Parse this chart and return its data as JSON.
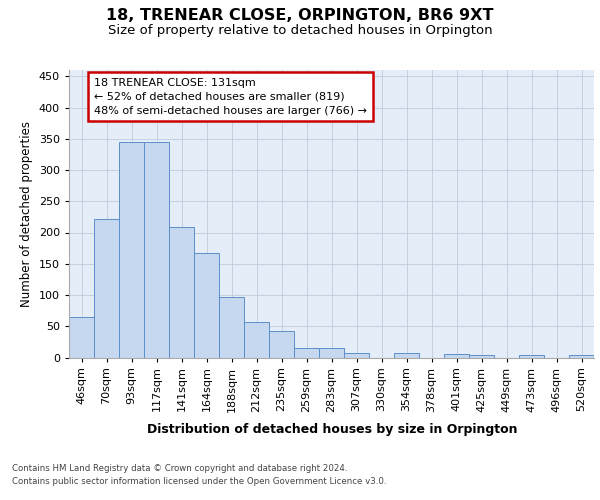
{
  "title": "18, TRENEAR CLOSE, ORPINGTON, BR6 9XT",
  "subtitle": "Size of property relative to detached houses in Orpington",
  "xlabel": "Distribution of detached houses by size in Orpington",
  "ylabel": "Number of detached properties",
  "categories": [
    "46sqm",
    "70sqm",
    "93sqm",
    "117sqm",
    "141sqm",
    "164sqm",
    "188sqm",
    "212sqm",
    "235sqm",
    "259sqm",
    "283sqm",
    "307sqm",
    "330sqm",
    "354sqm",
    "378sqm",
    "401sqm",
    "425sqm",
    "449sqm",
    "473sqm",
    "496sqm",
    "520sqm"
  ],
  "values": [
    65,
    222,
    345,
    345,
    209,
    167,
    97,
    57,
    42,
    15,
    15,
    7,
    0,
    7,
    0,
    5,
    4,
    0,
    4,
    0,
    4
  ],
  "bar_color": "#c5d8ef",
  "bar_edge_color": "#5b8fc9",
  "grid_color": "#c0ccdc",
  "bg_color": "#e4edf8",
  "annotation_line1": "18 TRENEAR CLOSE: 131sqm",
  "annotation_line2": "← 52% of detached houses are smaller (819)",
  "annotation_line3": "48% of semi-detached houses are larger (766) →",
  "annotation_box_facecolor": "#ffffff",
  "annotation_box_edgecolor": "#cc0000",
  "footer_line1": "Contains HM Land Registry data © Crown copyright and database right 2024.",
  "footer_line2": "Contains public sector information licensed under the Open Government Licence v3.0.",
  "ylim_max": 460,
  "yticks": [
    0,
    50,
    100,
    150,
    200,
    250,
    300,
    350,
    400,
    450
  ]
}
